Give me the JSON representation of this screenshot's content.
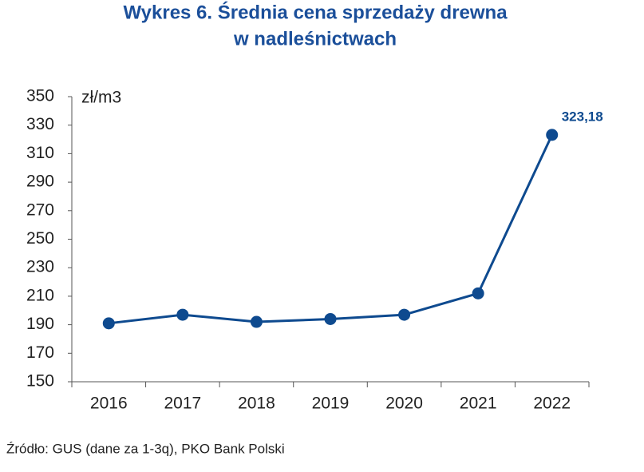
{
  "chart_data": {
    "type": "line",
    "title": [
      "Wykres 6. Średnia cena sprzedaży drewna",
      "w nadleśnictwach"
    ],
    "y_label": "zł/m3",
    "categories": [
      "2016",
      "2017",
      "2018",
      "2019",
      "2020",
      "2021",
      "2022"
    ],
    "series": [
      {
        "name": "Średnia cena sprzedaży drewna",
        "color": "#0e4a8f",
        "values": [
          191,
          197,
          192,
          194,
          197,
          212,
          323.18
        ],
        "value_labels": [
          null,
          null,
          null,
          null,
          null,
          null,
          "323,18"
        ]
      }
    ],
    "ylim": [
      150,
      350
    ],
    "yticks": [
      150,
      170,
      190,
      210,
      230,
      250,
      270,
      290,
      310,
      330,
      350
    ],
    "source": "Źródło: GUS (dane za 1-3q), PKO Bank Polski"
  }
}
